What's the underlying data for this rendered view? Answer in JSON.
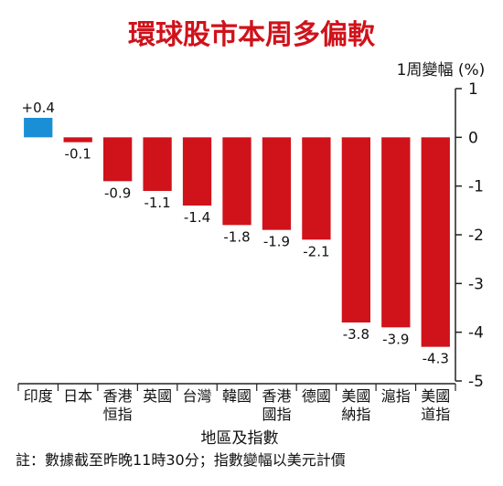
{
  "chart_data": {
    "type": "bar",
    "title": "環球股市本周多偏軟",
    "ylabel": "1周變幅 (%)",
    "xlabel": "地區及指數",
    "categories": [
      [
        "印度"
      ],
      [
        "日本"
      ],
      [
        "香港",
        "恒指"
      ],
      [
        "英國"
      ],
      [
        "台灣"
      ],
      [
        "韓國"
      ],
      [
        "香港",
        "國指"
      ],
      [
        "德國"
      ],
      [
        "美國",
        "納指"
      ],
      [
        "滬指"
      ],
      [
        "美國",
        "道指"
      ]
    ],
    "values": [
      0.4,
      -0.1,
      -0.9,
      -1.1,
      -1.4,
      -1.8,
      -1.9,
      -2.1,
      -3.8,
      -3.9,
      -4.3
    ],
    "value_labels": [
      "+0.4",
      "-0.1",
      "-0.9",
      "-1.1",
      "-1.4",
      "-1.8",
      "-1.9",
      "-2.1",
      "-3.8",
      "-3.9",
      "-4.3"
    ],
    "yticks": [
      1,
      0,
      -1,
      -2,
      -3,
      -4,
      -5
    ],
    "ylim": [
      -5,
      1
    ],
    "colors": {
      "positive": "#1b8fd6",
      "negative": "#d0121b"
    },
    "note": "註：數據截至昨晚11時30分；指數變幅以美元計價"
  }
}
